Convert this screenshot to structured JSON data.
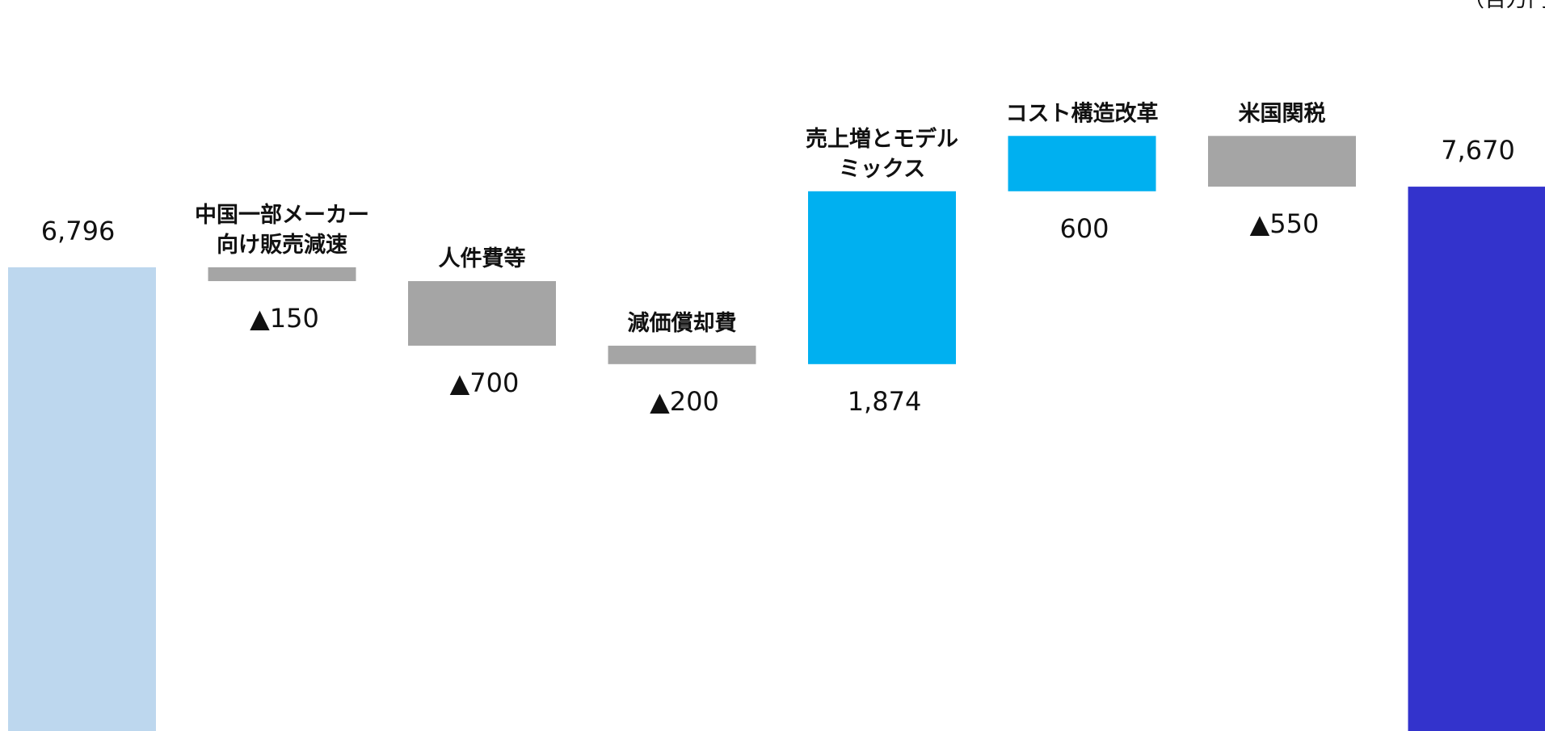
{
  "colors": {
    "start": "#bdd7ee",
    "decrease": "#a5a5a5",
    "increase": "#00b0f0",
    "end": "#3333cc"
  },
  "unit_text": "（百万円）",
  "chart_data": {
    "type": "bar",
    "subtype": "waterfall",
    "grid": false,
    "legend": "none",
    "ylim": [
      0,
      8200
    ],
    "categories": [
      "",
      "中国一部メーカー向け販売減速",
      "人件費等",
      "減価償却費",
      "売上増とモデルミックス",
      "コスト構造改革",
      "米国関税",
      ""
    ],
    "label_lines": [
      [],
      [
        "中国一部メーカー",
        "向け販売減速"
      ],
      [
        "人件費等"
      ],
      [
        "減価償却費"
      ],
      [
        "売上増とモデル",
        "ミックス"
      ],
      [
        "コスト構造改革"
      ],
      [
        "米国関税"
      ],
      []
    ],
    "values": [
      6796,
      -150,
      -700,
      -200,
      1874,
      600,
      -550,
      7670
    ],
    "data_labels": [
      "6,796",
      "▲150",
      "▲700",
      "▲200",
      "1,874",
      "600",
      "▲550",
      "7,670"
    ],
    "kinds": [
      "start",
      "decrease",
      "decrease",
      "decrease",
      "increase",
      "increase",
      "decrease",
      "end"
    ]
  }
}
